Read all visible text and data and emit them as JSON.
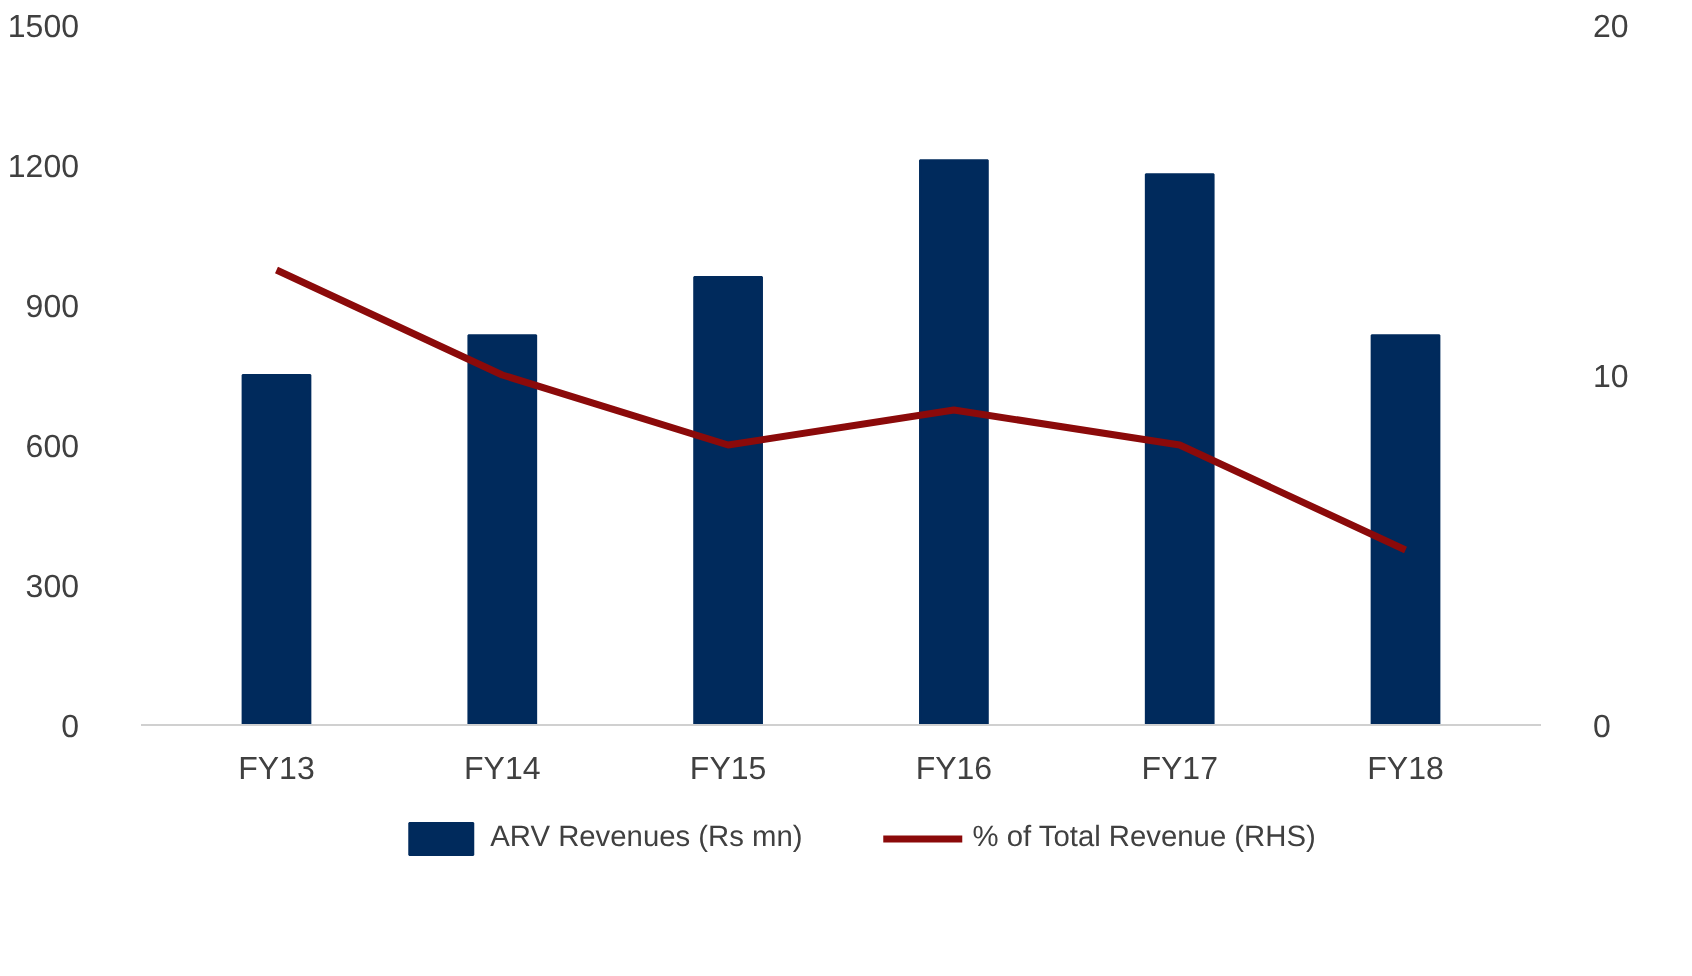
{
  "chart_data": {
    "type": "bar",
    "categories": [
      "FY13",
      "FY14",
      "FY15",
      "FY16",
      "FY17",
      "FY18"
    ],
    "series": [
      {
        "name": "ARV Revenues (Rs mn)",
        "color": "#002a5c",
        "values": [
          750,
          835,
          960,
          1210,
          1180,
          835
        ]
      },
      {
        "name": "% of Total Revenue (RHS)",
        "type": "line",
        "axis": "y2",
        "color": "#8b0a0a",
        "values": [
          13.0,
          10.0,
          8.0,
          9.0,
          8.0,
          5.0
        ]
      }
    ],
    "ylim": [
      0,
      1500
    ],
    "yticks": [
      0,
      300,
      600,
      900,
      1200,
      1500
    ],
    "y2lim": [
      0,
      20
    ],
    "y2ticks": [
      0,
      10,
      20
    ],
    "grid": false,
    "legend": "bottom",
    "marker": "none",
    "line_style": "solid"
  }
}
